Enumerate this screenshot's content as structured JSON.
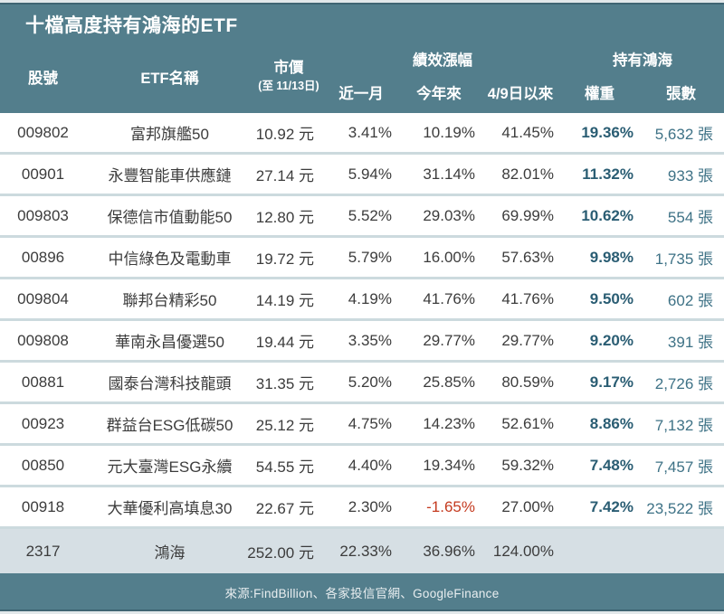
{
  "chart_data": {
    "type": "table",
    "title": "十檔高度持有鴻海的ETF",
    "header": {
      "code": "股號",
      "name": "ETF名稱",
      "price": "市價",
      "price_note": "(至 11/13日)",
      "performance_group": "績效漲幅",
      "month": "近一月",
      "ytd": "今年來",
      "since_april9": "4/9日以來",
      "holding_group": "持有鴻海",
      "weight": "權重",
      "lots": "張數"
    },
    "rows": [
      {
        "code": "009802",
        "name": "富邦旗艦50",
        "price": "10.92 元",
        "month": "3.41%",
        "ytd": "10.19%",
        "since": "41.45%",
        "weight": "19.36%",
        "lots": "5,632 張",
        "highlight": false
      },
      {
        "code": "00901",
        "name": "永豐智能車供應鏈",
        "price": "27.14 元",
        "month": "5.94%",
        "ytd": "31.14%",
        "since": "82.01%",
        "weight": "11.32%",
        "lots": "933 張",
        "highlight": false
      },
      {
        "code": "009803",
        "name": "保德信市值動能50",
        "price": "12.80 元",
        "month": "5.52%",
        "ytd": "29.03%",
        "since": "69.99%",
        "weight": "10.62%",
        "lots": "554 張",
        "highlight": false
      },
      {
        "code": "00896",
        "name": "中信綠色及電動車",
        "price": "19.72 元",
        "month": "5.79%",
        "ytd": "16.00%",
        "since": "57.63%",
        "weight": "9.98%",
        "lots": "1,735 張",
        "highlight": false
      },
      {
        "code": "009804",
        "name": "聯邦台精彩50",
        "price": "14.19 元",
        "month": "4.19%",
        "ytd": "41.76%",
        "since": "41.76%",
        "weight": "9.50%",
        "lots": "602 張",
        "highlight": false
      },
      {
        "code": "009808",
        "name": "華南永昌優選50",
        "price": "19.44 元",
        "month": "3.35%",
        "ytd": "29.77%",
        "since": "29.77%",
        "weight": "9.20%",
        "lots": "391 張",
        "highlight": false
      },
      {
        "code": "00881",
        "name": "國泰台灣科技龍頭",
        "price": "31.35 元",
        "month": "5.20%",
        "ytd": "25.85%",
        "since": "80.59%",
        "weight": "9.17%",
        "lots": "2,726 張",
        "highlight": false
      },
      {
        "code": "00923",
        "name": "群益台ESG低碳50",
        "price": "25.12 元",
        "month": "4.75%",
        "ytd": "14.23%",
        "since": "52.61%",
        "weight": "8.86%",
        "lots": "7,132 張",
        "highlight": false
      },
      {
        "code": "00850",
        "name": "元大臺灣ESG永續",
        "price": "54.55 元",
        "month": "4.40%",
        "ytd": "19.34%",
        "since": "59.32%",
        "weight": "7.48%",
        "lots": "7,457 張",
        "highlight": false
      },
      {
        "code": "00918",
        "name": "大華優利高填息30",
        "price": "22.67 元",
        "month": "2.30%",
        "ytd": "-1.65%",
        "since": "27.00%",
        "weight": "7.42%",
        "lots": "23,522 張",
        "highlight": false
      },
      {
        "code": "2317",
        "name": "鴻海",
        "price": "252.00 元",
        "month": "22.33%",
        "ytd": "36.96%",
        "since": "124.00%",
        "weight": "",
        "lots": "",
        "highlight": true
      }
    ]
  },
  "footer": {
    "source": "來源:FindBillion、各家投信官網、GoogleFinance"
  },
  "colors": {
    "header-bg": "#537e8c",
    "footer-bg": "#537e8c",
    "row-bg": "#ffffff",
    "row-separator": "#ccdade",
    "highlight-row-bg": "#d6dfe4",
    "header-text": "#ffffff",
    "body-text": "#3c3c3c",
    "weight-text": "#2a5d73",
    "lots-text": "#3e7286",
    "negative-text": "#c43a1f",
    "edge-strip": "#e2e8ea",
    "footer-text": "#e9eef0"
  }
}
